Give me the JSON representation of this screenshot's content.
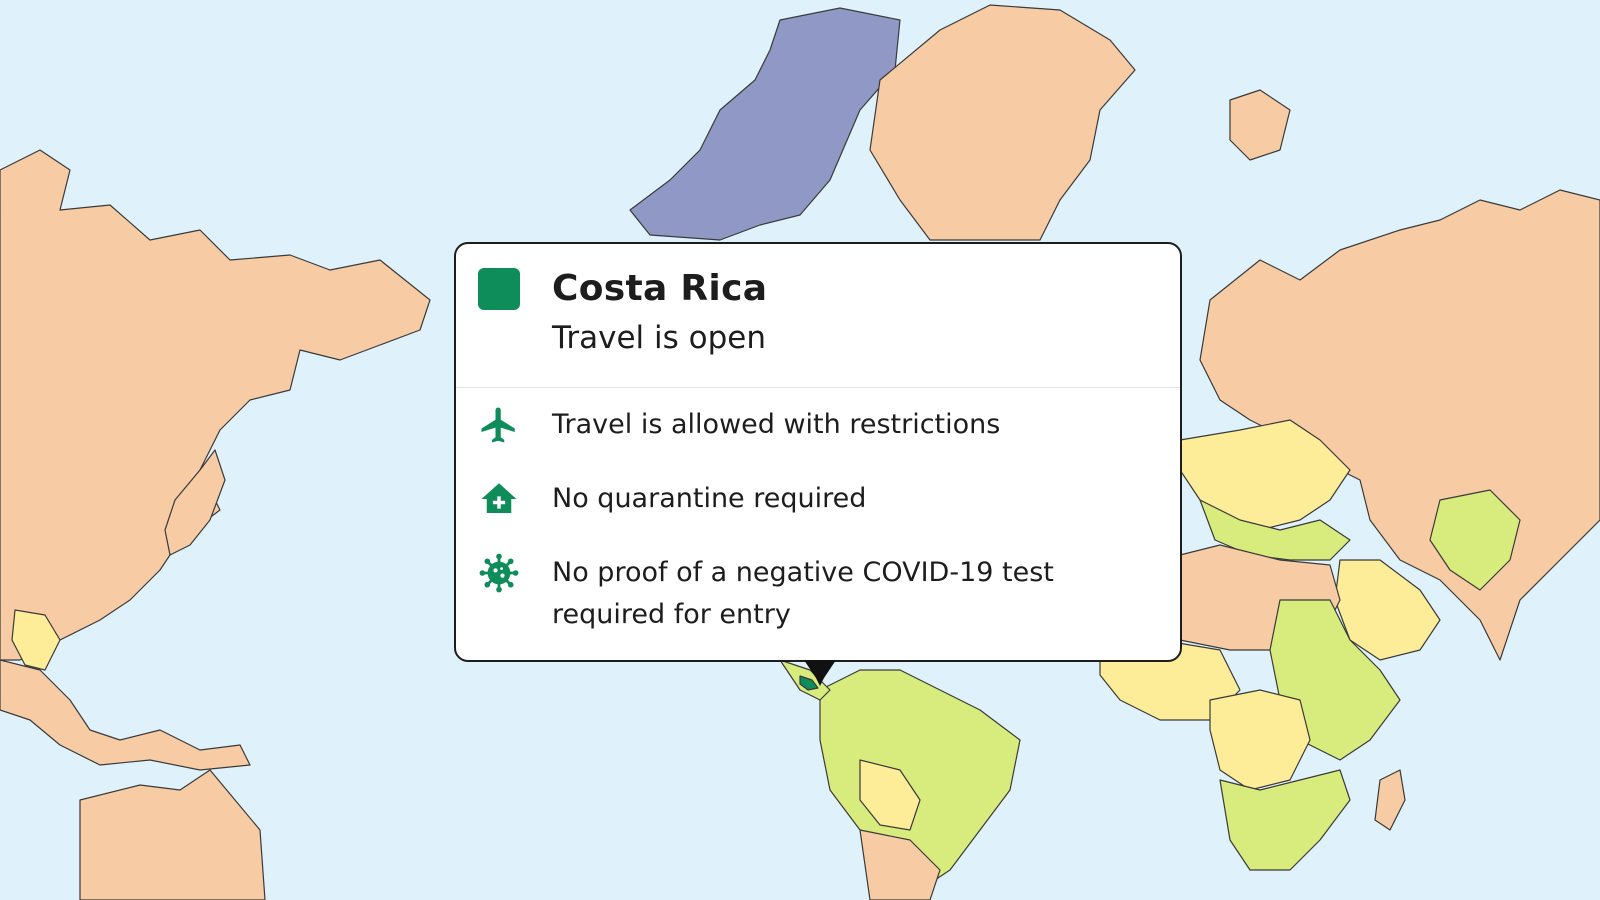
{
  "popup": {
    "country": "Costa Rica",
    "status": "Travel is open",
    "status_color": "#0e8c5a",
    "items": [
      {
        "icon": "airplane-icon",
        "text": "Travel is allowed with restrictions"
      },
      {
        "icon": "house-medical-icon",
        "text": "No quarantine required"
      },
      {
        "icon": "virus-icon",
        "text": "No proof of a negative COVID-19 test required for entry"
      }
    ]
  },
  "map": {
    "selected_country": "Costa Rica",
    "colors": {
      "ocean": "#dff2fb",
      "closed": "#f7cba4",
      "restricted": "#fdec98",
      "open_partial": "#d8eb7d",
      "open": "#0e8c5a",
      "no_data": "#e8ecf1",
      "arctic": "#9098c6"
    }
  }
}
